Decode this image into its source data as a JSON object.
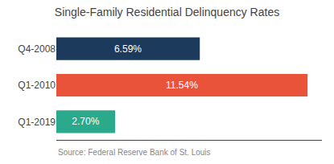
{
  "chart_data": {
    "type": "bar",
    "orientation": "horizontal",
    "title": "Single-Family Residential Delinquency Rates",
    "categories": [
      "Q4-2008",
      "Q1-2010",
      "Q1-2019"
    ],
    "values": [
      6.59,
      11.54,
      2.7
    ],
    "value_labels": [
      "6.59%",
      "11.54%",
      "2.70%"
    ],
    "colors": [
      "#1b3a5c",
      "#e8533a",
      "#2aaa8a"
    ],
    "xlim": [
      0,
      12.2
    ],
    "xticks": [],
    "grid": false,
    "data_labels": true,
    "tick_labels": "y",
    "annotations": [
      "Source: Federal Reserve Bank of St. Louis"
    ]
  }
}
